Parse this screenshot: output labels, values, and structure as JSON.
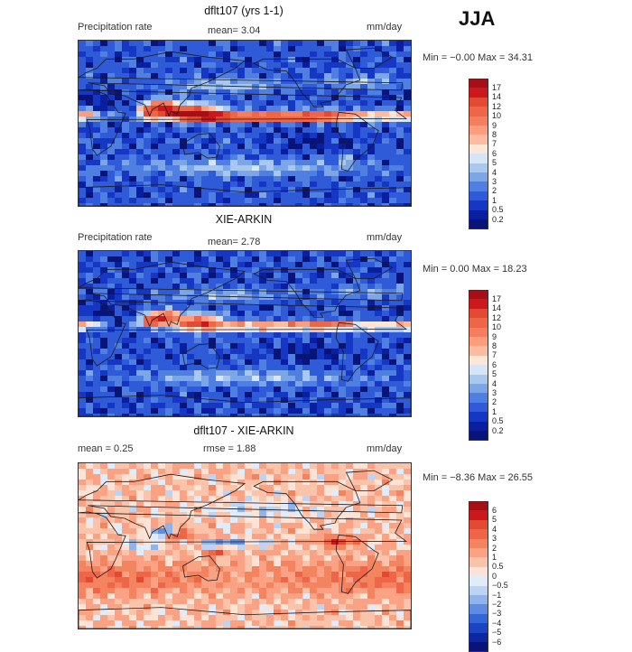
{
  "season": "JJA",
  "panels": [
    {
      "title": "dflt107 (yrs 1-1)",
      "left_label": "Precipitation rate",
      "mean_text": "mean=   3.04",
      "rmse_text": "",
      "units": "mm/day",
      "minmax": "Min =  −0.00 Max =  34.31",
      "levels": [
        "17",
        "14",
        "12",
        "10",
        "9",
        "8",
        "7",
        "6",
        "5",
        "4",
        "3",
        "2",
        "1",
        "0.5",
        "0.2"
      ],
      "colors": [
        "#a50f15",
        "#cb181d",
        "#e34a33",
        "#ef6548",
        "#f47e5e",
        "#fc9d7e",
        "#fdbb9f",
        "#fde6d6",
        "#d6e6f7",
        "#a9c8f0",
        "#7da6e8",
        "#4f7fe0",
        "#2f5bd9",
        "#1637c4",
        "#0a1fa0",
        "#081478"
      ],
      "field": "precip"
    },
    {
      "title": "XIE-ARKIN",
      "left_label": "Precipitation rate",
      "mean_text": "mean=   2.78",
      "rmse_text": "",
      "units": "mm/day",
      "minmax": "Min =   0.00 Max =  18.23",
      "levels": [
        "17",
        "14",
        "12",
        "10",
        "9",
        "8",
        "7",
        "6",
        "5",
        "4",
        "3",
        "2",
        "1",
        "0.5",
        "0.2"
      ],
      "colors": [
        "#a50f15",
        "#cb181d",
        "#e34a33",
        "#ef6548",
        "#f47e5e",
        "#fc9d7e",
        "#fdbb9f",
        "#fde6d6",
        "#d6e6f7",
        "#a9c8f0",
        "#7da6e8",
        "#4f7fe0",
        "#2f5bd9",
        "#1637c4",
        "#0a1fa0",
        "#081478"
      ],
      "field": "obs"
    },
    {
      "title": "dflt107 - XIE-ARKIN",
      "left_label": "",
      "mean_text": "mean =   0.25",
      "rmse_text": "rmse =   1.88",
      "units": "mm/day",
      "minmax": "Min =  −8.36 Max =  26.55",
      "levels": [
        "6",
        "5",
        "4",
        "3",
        "2",
        "1",
        "0.5",
        "0",
        "−0.5",
        "−1",
        "−2",
        "−3",
        "−4",
        "−5",
        "−6"
      ],
      "colors": [
        "#a50f15",
        "#cb181d",
        "#e34a33",
        "#ef6548",
        "#f4845f",
        "#fba184",
        "#fcc3ab",
        "#fde3d6",
        "#e1ecfa",
        "#bcd3f3",
        "#8fb3ea",
        "#5f8ce0",
        "#3566d6",
        "#1a44c2",
        "#0e27a0",
        "#081478"
      ],
      "field": "diff"
    }
  ],
  "chart_data": [
    {
      "type": "heatmap",
      "title": "dflt107 (yrs 1-1)",
      "subtitle": "Precipitation rate",
      "units": "mm/day",
      "mean": 3.04,
      "min": -0.0,
      "max": 34.31,
      "levels": [
        0.2,
        0.5,
        1,
        2,
        3,
        4,
        5,
        6,
        7,
        8,
        9,
        10,
        12,
        14,
        17
      ]
    },
    {
      "type": "heatmap",
      "title": "XIE-ARKIN",
      "subtitle": "Precipitation rate",
      "units": "mm/day",
      "mean": 2.78,
      "min": 0.0,
      "max": 18.23,
      "levels": [
        0.2,
        0.5,
        1,
        2,
        3,
        4,
        5,
        6,
        7,
        8,
        9,
        10,
        12,
        14,
        17
      ]
    },
    {
      "type": "heatmap",
      "title": "dflt107 - XIE-ARKIN",
      "units": "mm/day",
      "mean": 0.25,
      "rmse": 1.88,
      "min": -8.36,
      "max": 26.55,
      "levels": [
        -6,
        -5,
        -4,
        -3,
        -2,
        -1,
        -0.5,
        0,
        0.5,
        1,
        2,
        3,
        4,
        5,
        6
      ]
    }
  ]
}
